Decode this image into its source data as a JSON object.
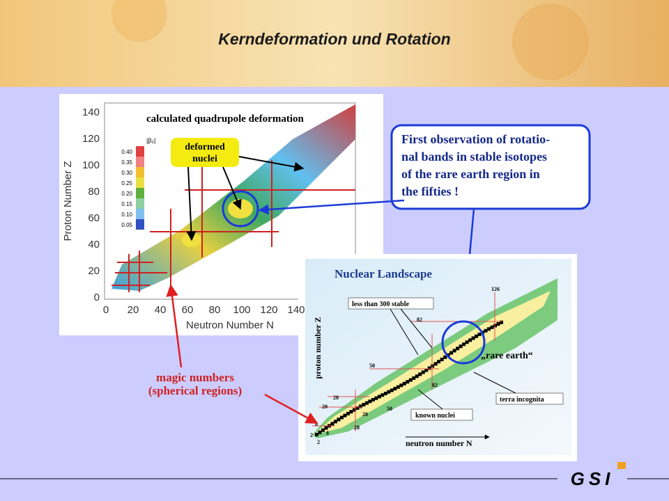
{
  "header": {
    "title": "Kerndeformation und Rotation"
  },
  "left_figure": {
    "title": "calculated quadrupole deformation",
    "y_label": "Proton Number Z",
    "x_label": "Neutron Number N",
    "yticks": [
      "0",
      "20",
      "40",
      "60",
      "80",
      "100",
      "120",
      "140"
    ],
    "xticks": [
      "0",
      "20",
      "40",
      "60",
      "80",
      "100",
      "120",
      "140"
    ],
    "colorbar_label": "|β₂|",
    "colorbar_ticks": [
      "0.40",
      "0.35",
      "0.30",
      "0.25",
      "0.20",
      "0.15",
      "0.10",
      "0.05"
    ],
    "annotation": [
      "deformed",
      "nuclei"
    ]
  },
  "callout": [
    "First observation of rotatio-",
    "nal bands in stable isotopes",
    "of the rare earth region in",
    "the fifties !"
  ],
  "right_figure": {
    "title": "Nuclear Landscape",
    "y_label": "proton number Z",
    "x_label": "neutron number N",
    "labels": {
      "stable": "less than 300 stable",
      "known": "known nuclei",
      "terra": "terra incognita",
      "rare": "„rare earth“"
    },
    "magic": [
      "2",
      "8",
      "20",
      "28",
      "50",
      "82",
      "126",
      "2",
      "8",
      "20",
      "28",
      "50",
      "82"
    ]
  },
  "magic_note": [
    "magic numbers",
    "(spherical regions)"
  ],
  "logo": "GSI"
}
